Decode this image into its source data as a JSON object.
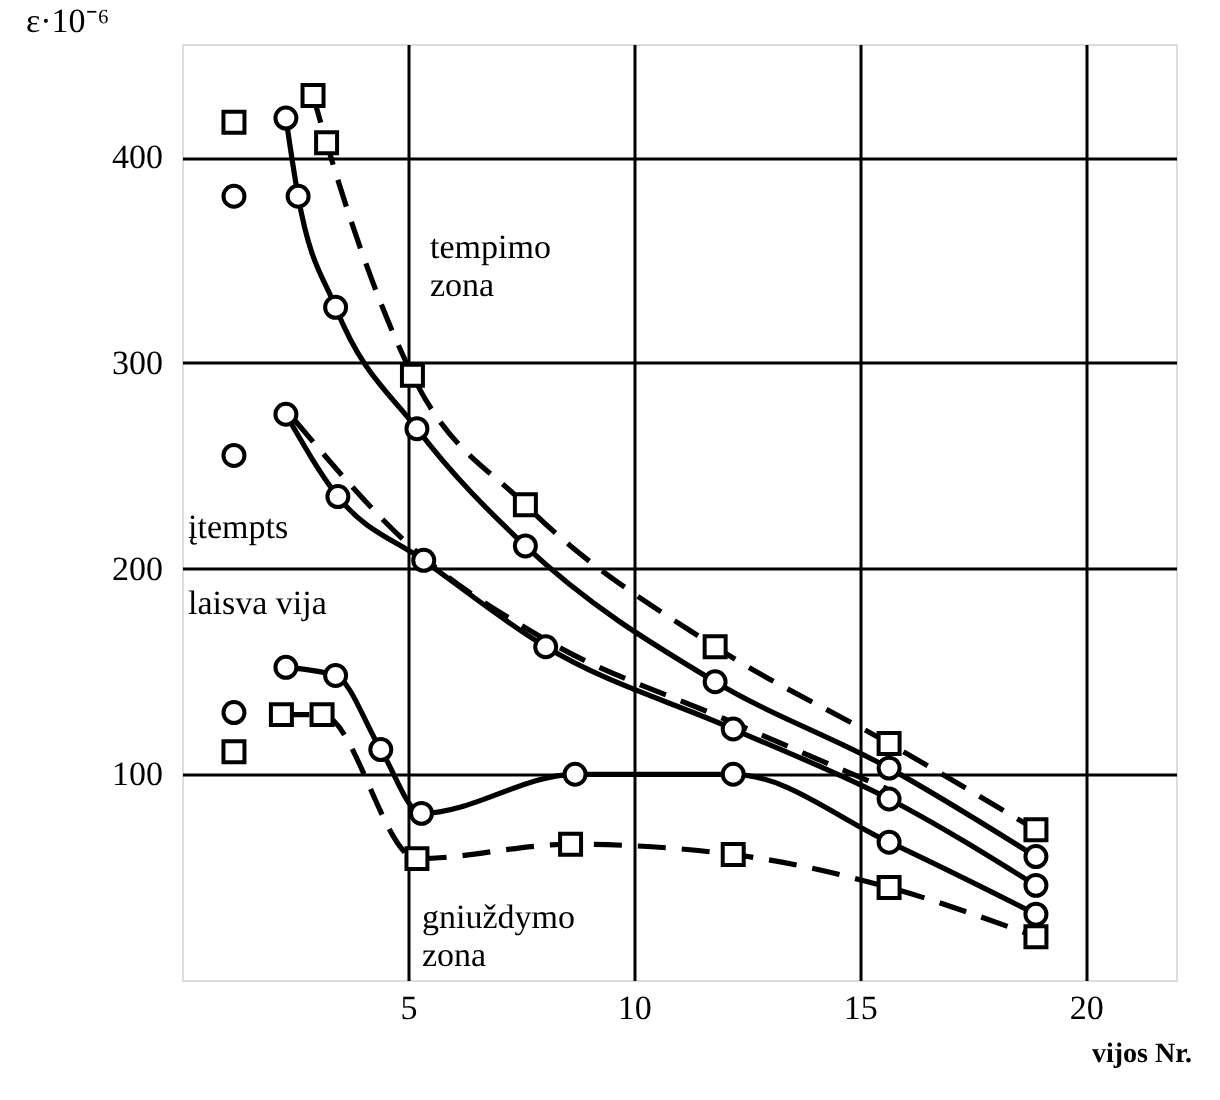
{
  "chart_data": {
    "type": "line",
    "xlabel": "vijos Nr.",
    "ylabel": "ε·10⁻⁶",
    "xlim": [
      0,
      22
    ],
    "ylim": [
      0,
      455
    ],
    "xticks": [
      5,
      10,
      15,
      20
    ],
    "yticks": [
      100,
      200,
      300,
      400
    ],
    "grid": true,
    "series": [
      {
        "color": "#000000",
        "marker": "circle",
        "line_style": "solid",
        "x": [
          2.3,
          2.57,
          3.4,
          5.2,
          7.6,
          11.8,
          15.65,
          18.9
        ],
        "values": [
          419,
          381,
          327,
          268,
          211,
          145,
          103,
          60
        ]
      },
      {
        "color": "#000000",
        "marker": "square",
        "line_style": "dashed",
        "x": [
          2.9,
          3.2,
          5.1,
          7.6,
          11.8,
          15.65,
          18.9
        ],
        "values": [
          430,
          407,
          294,
          231,
          162,
          115,
          73
        ]
      },
      {
        "color": "#000000",
        "marker": "none",
        "line_style": "dashed",
        "x": [
          2.5,
          5.0,
          8.0,
          12.0,
          15.6
        ],
        "values": [
          272,
          212,
          166,
          127,
          93
        ]
      },
      {
        "color": "#000000",
        "marker": "circle",
        "line_style": "solid",
        "x": [
          2.3,
          3.45,
          5.35,
          8.05,
          12.2,
          15.65,
          18.9
        ],
        "values": [
          275,
          235,
          204,
          162,
          122,
          88,
          46
        ]
      },
      {
        "color": "#000000",
        "marker": "circle",
        "line_style": "solid",
        "x": [
          2.3,
          3.4,
          4.4,
          5.3,
          8.7,
          12.2,
          15.65,
          18.9
        ],
        "values": [
          152,
          148,
          112,
          81,
          100,
          100,
          67,
          32
        ]
      },
      {
        "color": "#000000",
        "marker": "square",
        "line_style": "dashed",
        "x": [
          2.2,
          3.1,
          5.2,
          8.6,
          12.2,
          15.65,
          18.9
        ],
        "values": [
          129,
          129,
          59,
          66,
          61,
          45,
          21
        ]
      },
      {
        "type": "scatter",
        "color": "#000000",
        "marker": "circle",
        "x": [
          1.15,
          1.15,
          1.15
        ],
        "values": [
          381,
          255,
          130
        ]
      },
      {
        "type": "scatter",
        "color": "#000000",
        "marker": "square",
        "x": [
          1.15,
          1.15
        ],
        "values": [
          417,
          111
        ]
      }
    ],
    "annotations": [
      "tempimo\nzona",
      "įtempts",
      "laisva vija",
      "gniuždymo\nzona"
    ]
  }
}
